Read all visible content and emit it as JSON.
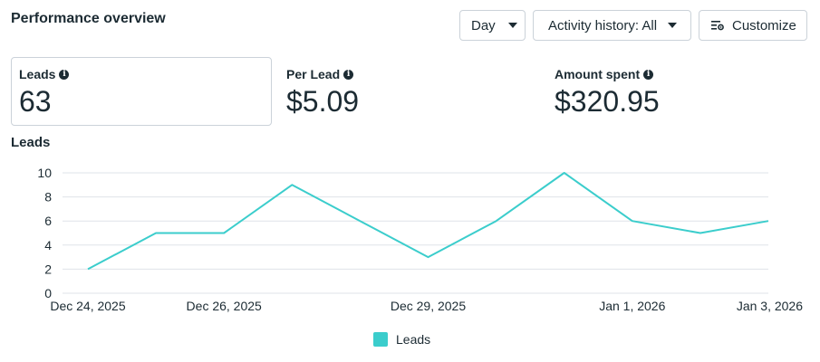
{
  "header": {
    "title": "Performance overview"
  },
  "controls": {
    "day_label": "Day",
    "activity_label": "Activity history: All",
    "customize_label": "Customize"
  },
  "metrics": [
    {
      "label": "Leads",
      "value": "63"
    },
    {
      "label": "Per Lead",
      "value": "$5.09"
    },
    {
      "label": "Amount spent",
      "value": "$320.95"
    }
  ],
  "colors": {
    "series": "#3bcdcc",
    "grid": "#dfe3e8",
    "text": "#1c2b33"
  },
  "chart_data": {
    "type": "line",
    "title": "Leads",
    "x": [
      "Dec 24, 2025",
      "Dec 25, 2025",
      "Dec 26, 2025",
      "Dec 27, 2025",
      "Dec 28, 2025",
      "Dec 29, 2025",
      "Dec 30, 2025",
      "Dec 31, 2025",
      "Jan 1, 2026",
      "Jan 2, 2026",
      "Jan 3, 2026"
    ],
    "x_tick_labels": [
      "Dec 24, 2025",
      "Dec 26, 2025",
      "Dec 29, 2025",
      "Jan 1, 2026",
      "Jan 3, 2026"
    ],
    "y_ticks": [
      0,
      2,
      4,
      6,
      8,
      10
    ],
    "ylim": [
      0,
      10
    ],
    "series": [
      {
        "name": "Leads",
        "values": [
          2,
          5,
          5,
          9,
          6,
          3,
          6,
          10,
          6,
          5,
          6
        ]
      }
    ],
    "grid": true,
    "legend": "bottom-center"
  }
}
